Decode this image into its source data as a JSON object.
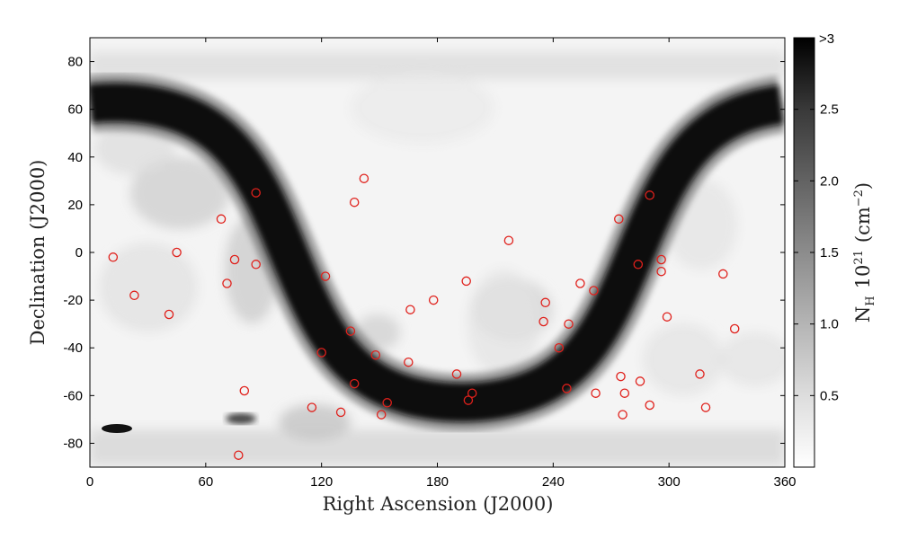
{
  "chart_data": {
    "type": "scatter",
    "title": "",
    "xlabel": "Right Ascension (J2000)",
    "ylabel": "Declination (J2000)",
    "xlim": [
      0,
      360
    ],
    "ylim": [
      -90,
      90
    ],
    "x_ticks": [
      0,
      60,
      120,
      180,
      240,
      300,
      360
    ],
    "y_ticks": [
      -80,
      -60,
      -40,
      -20,
      0,
      20,
      40,
      60,
      80
    ],
    "background": {
      "type": "heatmap",
      "quantity": "N_H",
      "colormap": "gray_reversed",
      "description_of_feature": "Galactic plane band"
    },
    "colorbar": {
      "label_main": "N",
      "label_sub": "H",
      "label_power_base": "10",
      "label_power_exp": "21",
      "label_unit_open": "(cm",
      "label_unit_exp": "−2",
      "label_unit_close": ")",
      "ticks": [
        0.5,
        1.0,
        1.5,
        2.0,
        2.5
      ],
      "tick_labels": [
        "0.5",
        "1.0",
        "1.5",
        "2.0",
        "2.5"
      ],
      "top_label": ">3",
      "range": [
        0,
        3
      ]
    },
    "marker": {
      "shape": "open-circle",
      "color": "#e0201b"
    },
    "points": [
      {
        "x": 12,
        "y": -2
      },
      {
        "x": 23,
        "y": -18
      },
      {
        "x": 41,
        "y": -26
      },
      {
        "x": 45,
        "y": 0
      },
      {
        "x": 68,
        "y": 14
      },
      {
        "x": 71,
        "y": -13
      },
      {
        "x": 75,
        "y": -3
      },
      {
        "x": 80,
        "y": -58
      },
      {
        "x": 77,
        "y": -85
      },
      {
        "x": 86,
        "y": 25
      },
      {
        "x": 86,
        "y": -5
      },
      {
        "x": 115,
        "y": -65
      },
      {
        "x": 120,
        "y": -42
      },
      {
        "x": 122,
        "y": -10
      },
      {
        "x": 130,
        "y": -67
      },
      {
        "x": 135,
        "y": -33
      },
      {
        "x": 137,
        "y": -55
      },
      {
        "x": 137,
        "y": 21
      },
      {
        "x": 142,
        "y": 31
      },
      {
        "x": 148,
        "y": -43
      },
      {
        "x": 151,
        "y": -68
      },
      {
        "x": 154,
        "y": -63
      },
      {
        "x": 165,
        "y": -46
      },
      {
        "x": 166,
        "y": -24
      },
      {
        "x": 178,
        "y": -20
      },
      {
        "x": 190,
        "y": -51
      },
      {
        "x": 195,
        "y": -12
      },
      {
        "x": 196,
        "y": -62
      },
      {
        "x": 198,
        "y": -59
      },
      {
        "x": 217,
        "y": 5
      },
      {
        "x": 235,
        "y": -29
      },
      {
        "x": 236,
        "y": -21
      },
      {
        "x": 243,
        "y": -40
      },
      {
        "x": 247,
        "y": -57
      },
      {
        "x": 248,
        "y": -30
      },
      {
        "x": 254,
        "y": -13
      },
      {
        "x": 261,
        "y": -16
      },
      {
        "x": 262,
        "y": -59
      },
      {
        "x": 274,
        "y": 14
      },
      {
        "x": 275,
        "y": -52
      },
      {
        "x": 276,
        "y": -68
      },
      {
        "x": 277,
        "y": -59
      },
      {
        "x": 290,
        "y": 24
      },
      {
        "x": 290,
        "y": -64
      },
      {
        "x": 284,
        "y": -5
      },
      {
        "x": 285,
        "y": -54
      },
      {
        "x": 296,
        "y": -3
      },
      {
        "x": 296,
        "y": -8
      },
      {
        "x": 299,
        "y": -27
      },
      {
        "x": 316,
        "y": -51
      },
      {
        "x": 319,
        "y": -65
      },
      {
        "x": 328,
        "y": -9
      },
      {
        "x": 334,
        "y": -32
      }
    ]
  }
}
